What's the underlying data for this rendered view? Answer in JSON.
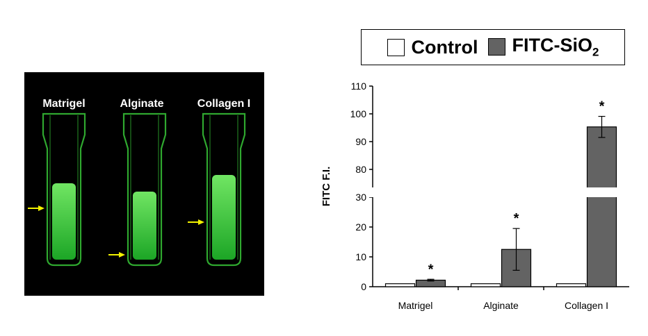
{
  "photo": {
    "labels": [
      "Matrigel",
      "Alginate",
      "Collagen I"
    ],
    "background": "#000000",
    "glow_color": "#3fe03f",
    "arrow_color": "#f2f200"
  },
  "legend": {
    "control_label": "Control",
    "fitc_label_main": "FITC-SiO",
    "fitc_label_sub": "2"
  },
  "colors": {
    "control": "#ffffff",
    "fitc": "#636363",
    "axis": "#000000"
  },
  "chart_data": {
    "type": "bar",
    "categories": [
      "Matrigel",
      "Alginate",
      "Collagen I"
    ],
    "ylabel": "FITC F.I.",
    "broken_axis": true,
    "lower_ticks": [
      "0",
      "10",
      "20",
      "30"
    ],
    "upper_ticks": [
      "80",
      "90",
      "100",
      "110"
    ],
    "lower_range": [
      0,
      30
    ],
    "upper_range": [
      75,
      110
    ],
    "series": [
      {
        "name": "Control",
        "values": [
          1,
          1,
          1
        ],
        "errors": [
          0,
          0,
          0
        ]
      },
      {
        "name": "FITC-SiO2",
        "values": [
          2.2,
          12.5,
          95.3
        ],
        "errors": [
          0.3,
          7,
          3.8
        ]
      }
    ],
    "annotations": [
      "*",
      "*",
      "*"
    ]
  }
}
